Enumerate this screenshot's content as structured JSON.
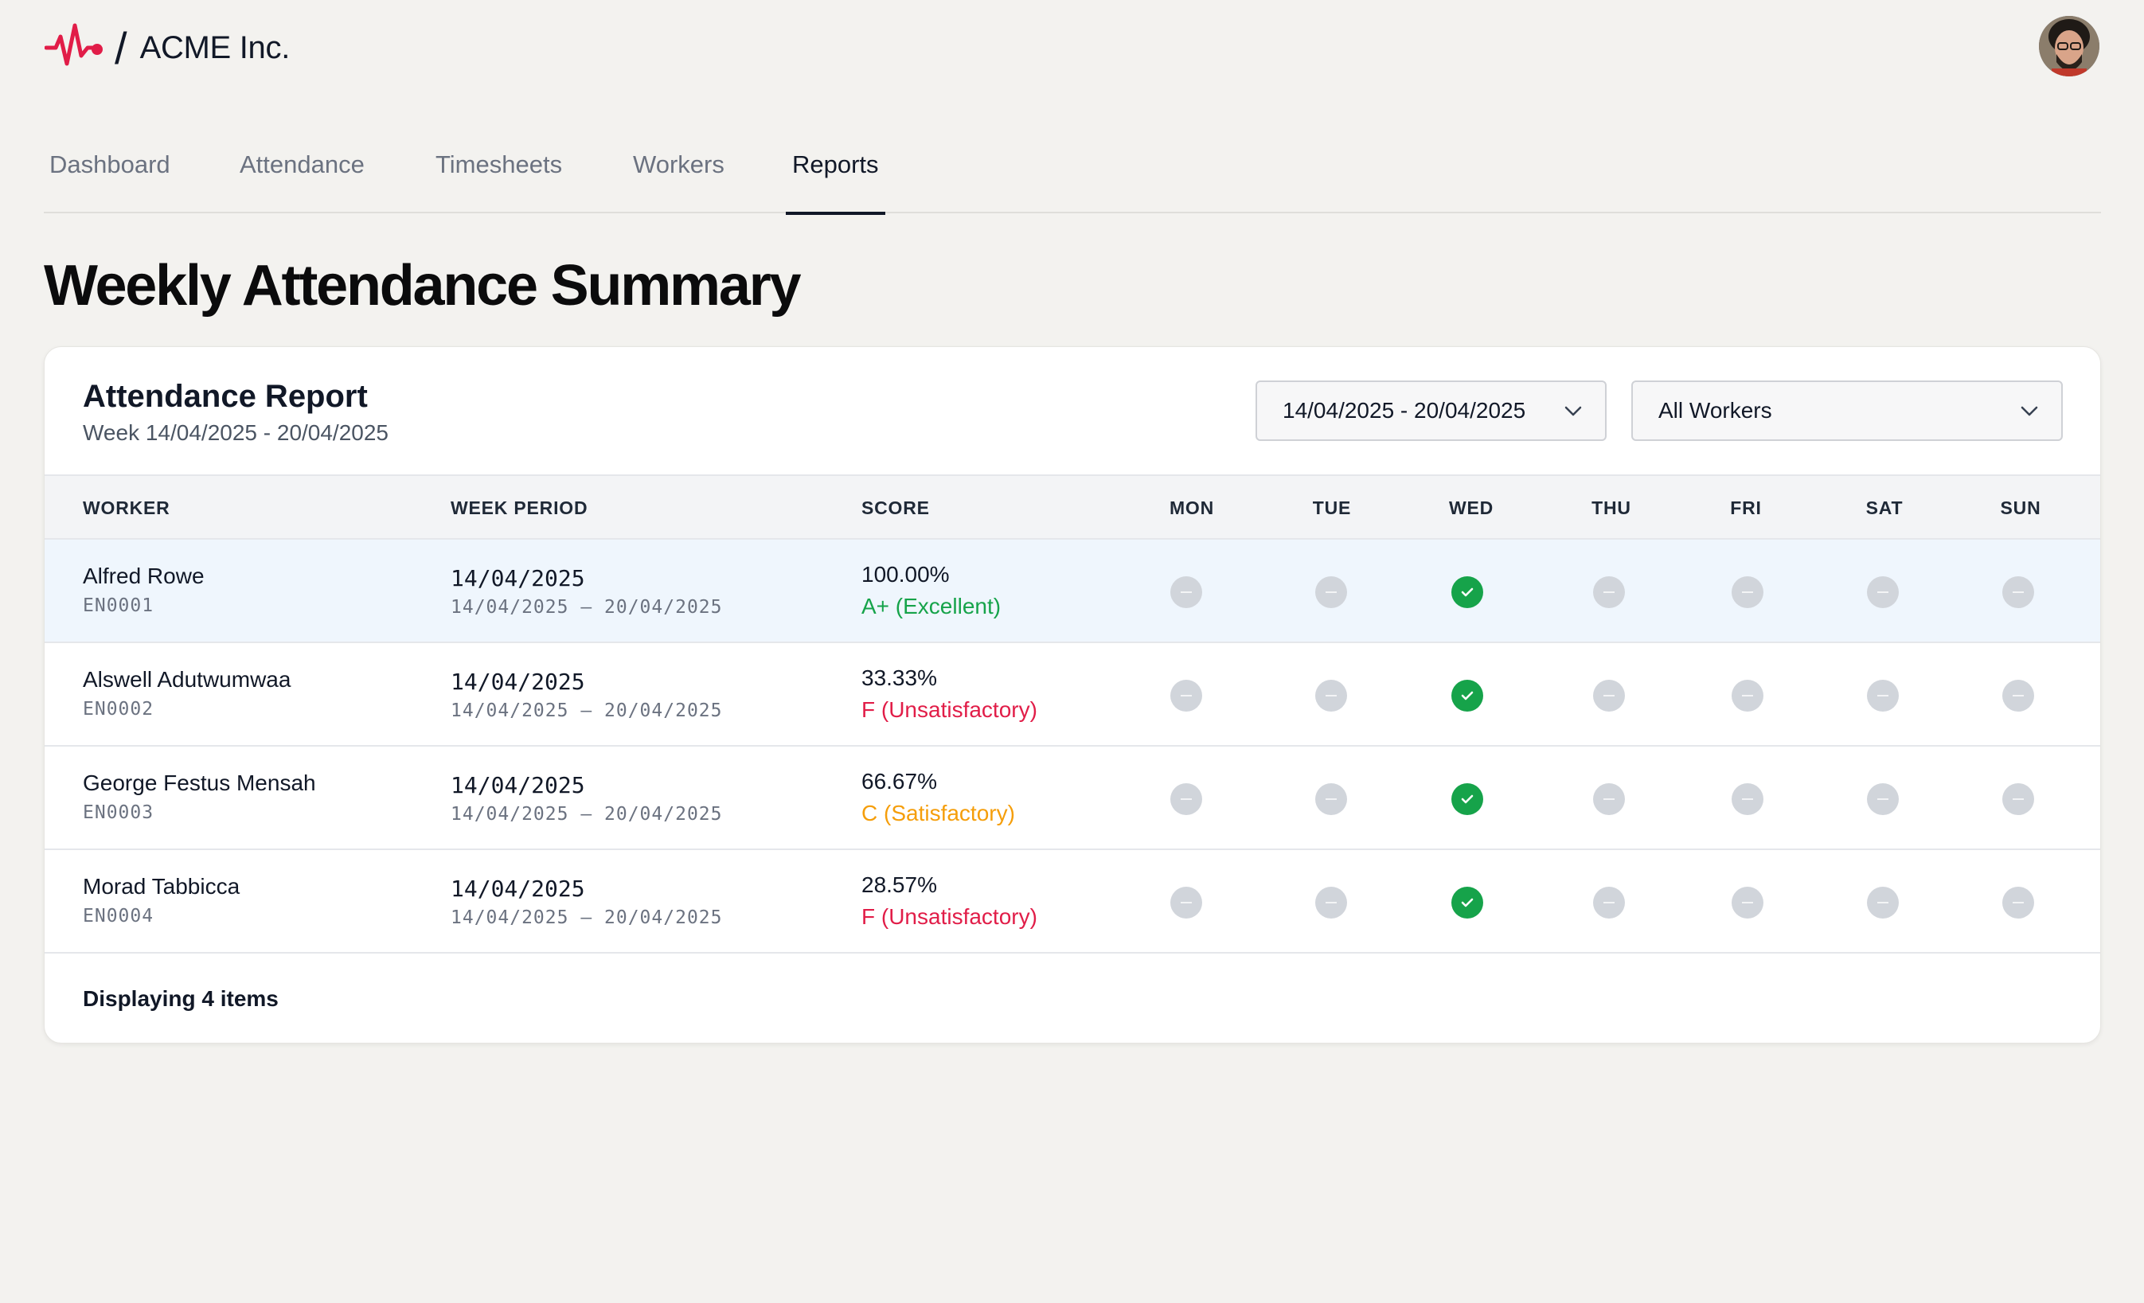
{
  "brand": {
    "name": "ACME Inc.",
    "separator": "/"
  },
  "nav": {
    "tabs": [
      {
        "label": "Dashboard",
        "active": false
      },
      {
        "label": "Attendance",
        "active": false
      },
      {
        "label": "Timesheets",
        "active": false
      },
      {
        "label": "Workers",
        "active": false
      },
      {
        "label": "Reports",
        "active": true
      }
    ]
  },
  "page": {
    "title": "Weekly Attendance Summary"
  },
  "report": {
    "title": "Attendance Report",
    "subtitle": "Week 14/04/2025 - 20/04/2025",
    "date_filter": "14/04/2025 - 20/04/2025",
    "worker_filter": "All Workers",
    "columns": {
      "worker": "WORKER",
      "week_period": "WEEK PERIOD",
      "score": "SCORE"
    },
    "days": [
      "MON",
      "TUE",
      "WED",
      "THU",
      "FRI",
      "SAT",
      "SUN"
    ],
    "rows": [
      {
        "name": "Alfred Rowe",
        "id": "EN0001",
        "date": "14/04/2025",
        "range": "14/04/2025 – 20/04/2025",
        "score": "100.00%",
        "grade": "A+ (Excellent)",
        "grade_color": "#16a34a",
        "attendance": [
          "none",
          "none",
          "present",
          "none",
          "none",
          "none",
          "none"
        ]
      },
      {
        "name": "Alswell Adutwumwaa",
        "id": "EN0002",
        "date": "14/04/2025",
        "range": "14/04/2025 – 20/04/2025",
        "score": "33.33%",
        "grade": "F (Unsatisfactory)",
        "grade_color": "#e11d48",
        "attendance": [
          "none",
          "none",
          "present",
          "none",
          "none",
          "none",
          "none"
        ]
      },
      {
        "name": "George Festus Mensah",
        "id": "EN0003",
        "date": "14/04/2025",
        "range": "14/04/2025 – 20/04/2025",
        "score": "66.67%",
        "grade": "C (Satisfactory)",
        "grade_color": "#f59e0b",
        "attendance": [
          "none",
          "none",
          "present",
          "none",
          "none",
          "none",
          "none"
        ]
      },
      {
        "name": "Morad Tabbicca",
        "id": "EN0004",
        "date": "14/04/2025",
        "range": "14/04/2025 – 20/04/2025",
        "score": "28.57%",
        "grade": "F (Unsatisfactory)",
        "grade_color": "#e11d48",
        "attendance": [
          "none",
          "none",
          "present",
          "none",
          "none",
          "none",
          "none"
        ]
      }
    ],
    "footer": "Displaying 4 items"
  },
  "colors": {
    "accent": "#e11d48",
    "present": "#16a34a",
    "absent": "#d1d5db",
    "highlight_row": "#eff6fd"
  },
  "icons": {
    "logo": "heartbeat-icon",
    "present": "check-circle-icon",
    "absent": "minus-circle-icon",
    "dropdown": "chevron-down-icon"
  }
}
